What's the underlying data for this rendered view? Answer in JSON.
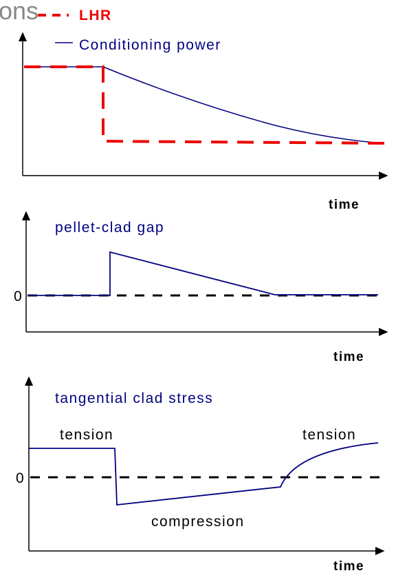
{
  "header": {
    "title": "ons"
  },
  "legend": {
    "items": [
      {
        "label": "LHR"
      },
      {
        "label": "Conditioning power"
      }
    ]
  },
  "panels": [
    {
      "x_label": "time"
    },
    {
      "title": "pellet-clad gap",
      "zero_label": "0",
      "x_label": "time"
    },
    {
      "title": "tangential clad stress",
      "zero_label": "0",
      "x_label": "time",
      "annotations": [
        "tension",
        "tension",
        "compression"
      ]
    }
  ]
}
